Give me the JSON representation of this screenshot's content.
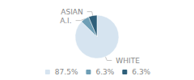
{
  "chart_data": {
    "type": "pie",
    "categories": [
      "WHITE",
      "A.I.",
      "ASIAN"
    ],
    "values": [
      87.5,
      6.3,
      6.3
    ],
    "value_labels": [
      "87.5%",
      "6.3%",
      "6.3%"
    ],
    "colors": [
      "#d6e4f0",
      "#6e9eb5",
      "#2e5f7a"
    ],
    "legend": "bottom"
  }
}
